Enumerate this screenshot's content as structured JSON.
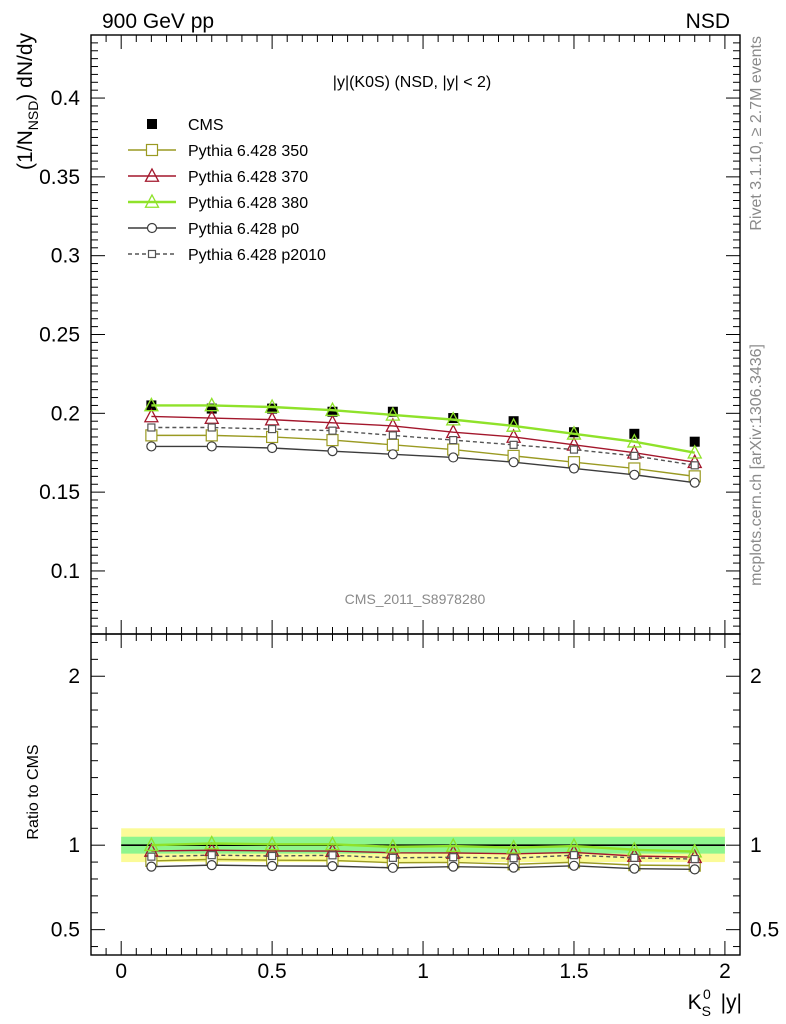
{
  "header": {
    "left": "900 GeV pp",
    "right": "NSD"
  },
  "side": {
    "rivet": "Rivet 3.1.10, ≥ 2.7M events",
    "mcplots": "mcplots.cern.ch [arXiv:1306.3436]"
  },
  "plot_title": "|y|(K0S) (NSD, |y| < 2)",
  "watermark": "CMS_2011_S8978280",
  "colors": {
    "cms": "#000000",
    "p350": "#9a9a22",
    "p370": "#a3172c",
    "p380": "#8fe22a",
    "p0": "#3c3c3c",
    "p2010": "#555555",
    "band_inner": "#8ef58e",
    "band_outer": "#fbfb98"
  },
  "chart_data": [
    {
      "type": "line",
      "panel": "main",
      "ylabel": "(1/N_NSD) dN/dy",
      "xlim": [
        -0.1,
        2.05
      ],
      "ylim": [
        0.06,
        0.44
      ],
      "yticks": [
        "0.1",
        "0.15",
        "0.2",
        "0.25",
        "0.3",
        "0.35",
        "0.4"
      ],
      "x": [
        0.1,
        0.3,
        0.5,
        0.7,
        0.9,
        1.1,
        1.3,
        1.5,
        1.7,
        1.9
      ],
      "series": [
        {
          "name": "CMS",
          "key": "cms",
          "style": "square-filled",
          "values": [
            0.205,
            0.203,
            0.203,
            0.201,
            0.201,
            0.197,
            0.195,
            0.188,
            0.187,
            0.182
          ]
        },
        {
          "name": "Pythia 6.428 350",
          "key": "p350",
          "style": "square-open",
          "values": [
            0.186,
            0.186,
            0.185,
            0.183,
            0.18,
            0.177,
            0.173,
            0.169,
            0.165,
            0.16
          ]
        },
        {
          "name": "Pythia 6.428 370",
          "key": "p370",
          "style": "triangle-open",
          "values": [
            0.198,
            0.197,
            0.196,
            0.194,
            0.192,
            0.188,
            0.185,
            0.18,
            0.175,
            0.169
          ]
        },
        {
          "name": "Pythia 6.428 380",
          "key": "p380",
          "style": "triangle-open",
          "values": [
            0.205,
            0.205,
            0.204,
            0.202,
            0.199,
            0.196,
            0.192,
            0.187,
            0.182,
            0.175
          ]
        },
        {
          "name": "Pythia 6.428 p0",
          "key": "p0",
          "style": "circle-open",
          "values": [
            0.179,
            0.179,
            0.178,
            0.176,
            0.174,
            0.172,
            0.169,
            0.165,
            0.161,
            0.156
          ]
        },
        {
          "name": "Pythia 6.428 p2010",
          "key": "p2010",
          "style": "square-open-dashed",
          "values": [
            0.191,
            0.191,
            0.19,
            0.189,
            0.186,
            0.183,
            0.18,
            0.177,
            0.173,
            0.167
          ]
        }
      ]
    },
    {
      "type": "line",
      "panel": "ratio",
      "xlabel": "K_S^0 |y|",
      "ylabel": "Ratio to CMS",
      "xlim": [
        -0.1,
        2.05
      ],
      "ylim": [
        0.35,
        2.25
      ],
      "xticks": [
        "0",
        "0.5",
        "1",
        "1.5",
        "2"
      ],
      "yticks": [
        "0.5",
        "1",
        "2"
      ],
      "bands": {
        "inner": [
          0.95,
          1.05
        ],
        "outer": [
          0.9,
          1.1
        ]
      },
      "x": [
        0.1,
        0.3,
        0.5,
        0.7,
        0.9,
        1.1,
        1.3,
        1.5,
        1.7,
        1.9
      ],
      "series": [
        {
          "name": "Pythia 6.428 350",
          "key": "p350",
          "style": "square-open",
          "values": [
            0.907,
            0.916,
            0.911,
            0.91,
            0.896,
            0.898,
            0.887,
            0.899,
            0.882,
            0.879
          ]
        },
        {
          "name": "Pythia 6.428 370",
          "key": "p370",
          "style": "triangle-open",
          "values": [
            0.966,
            0.97,
            0.966,
            0.965,
            0.955,
            0.954,
            0.949,
            0.957,
            0.936,
            0.929
          ]
        },
        {
          "name": "Pythia 6.428 380",
          "key": "p380",
          "style": "triangle-open",
          "values": [
            1.0,
            1.01,
            1.005,
            1.005,
            0.99,
            0.995,
            0.985,
            0.995,
            0.973,
            0.962
          ]
        },
        {
          "name": "Pythia 6.428 p0",
          "key": "p0",
          "style": "circle-open",
          "values": [
            0.873,
            0.882,
            0.877,
            0.876,
            0.866,
            0.873,
            0.867,
            0.878,
            0.861,
            0.857
          ]
        },
        {
          "name": "Pythia 6.428 p2010",
          "key": "p2010",
          "style": "square-open-dashed",
          "values": [
            0.932,
            0.941,
            0.936,
            0.94,
            0.925,
            0.929,
            0.923,
            0.941,
            0.925,
            0.918
          ]
        }
      ]
    }
  ]
}
